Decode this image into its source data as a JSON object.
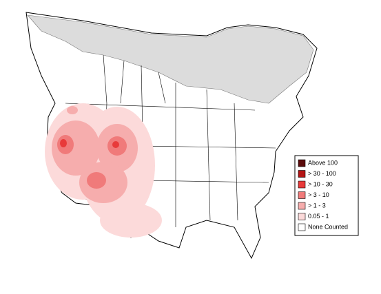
{
  "legend": {
    "items": [
      {
        "label": "Above 100",
        "color": "#5c0b0b"
      },
      {
        "label": "> 30 - 100",
        "color": "#b31515"
      },
      {
        "label": "> 10 - 30",
        "color": "#e83a3a"
      },
      {
        "label": "> 3 - 10",
        "color": "#f07a7a"
      },
      {
        "label": "> 1 - 3",
        "color": "#f6adad"
      },
      {
        "label": "0.05 - 1",
        "color": "#fcdada"
      },
      {
        "label": "None Counted",
        "color": "#ffffff"
      }
    ]
  }
}
